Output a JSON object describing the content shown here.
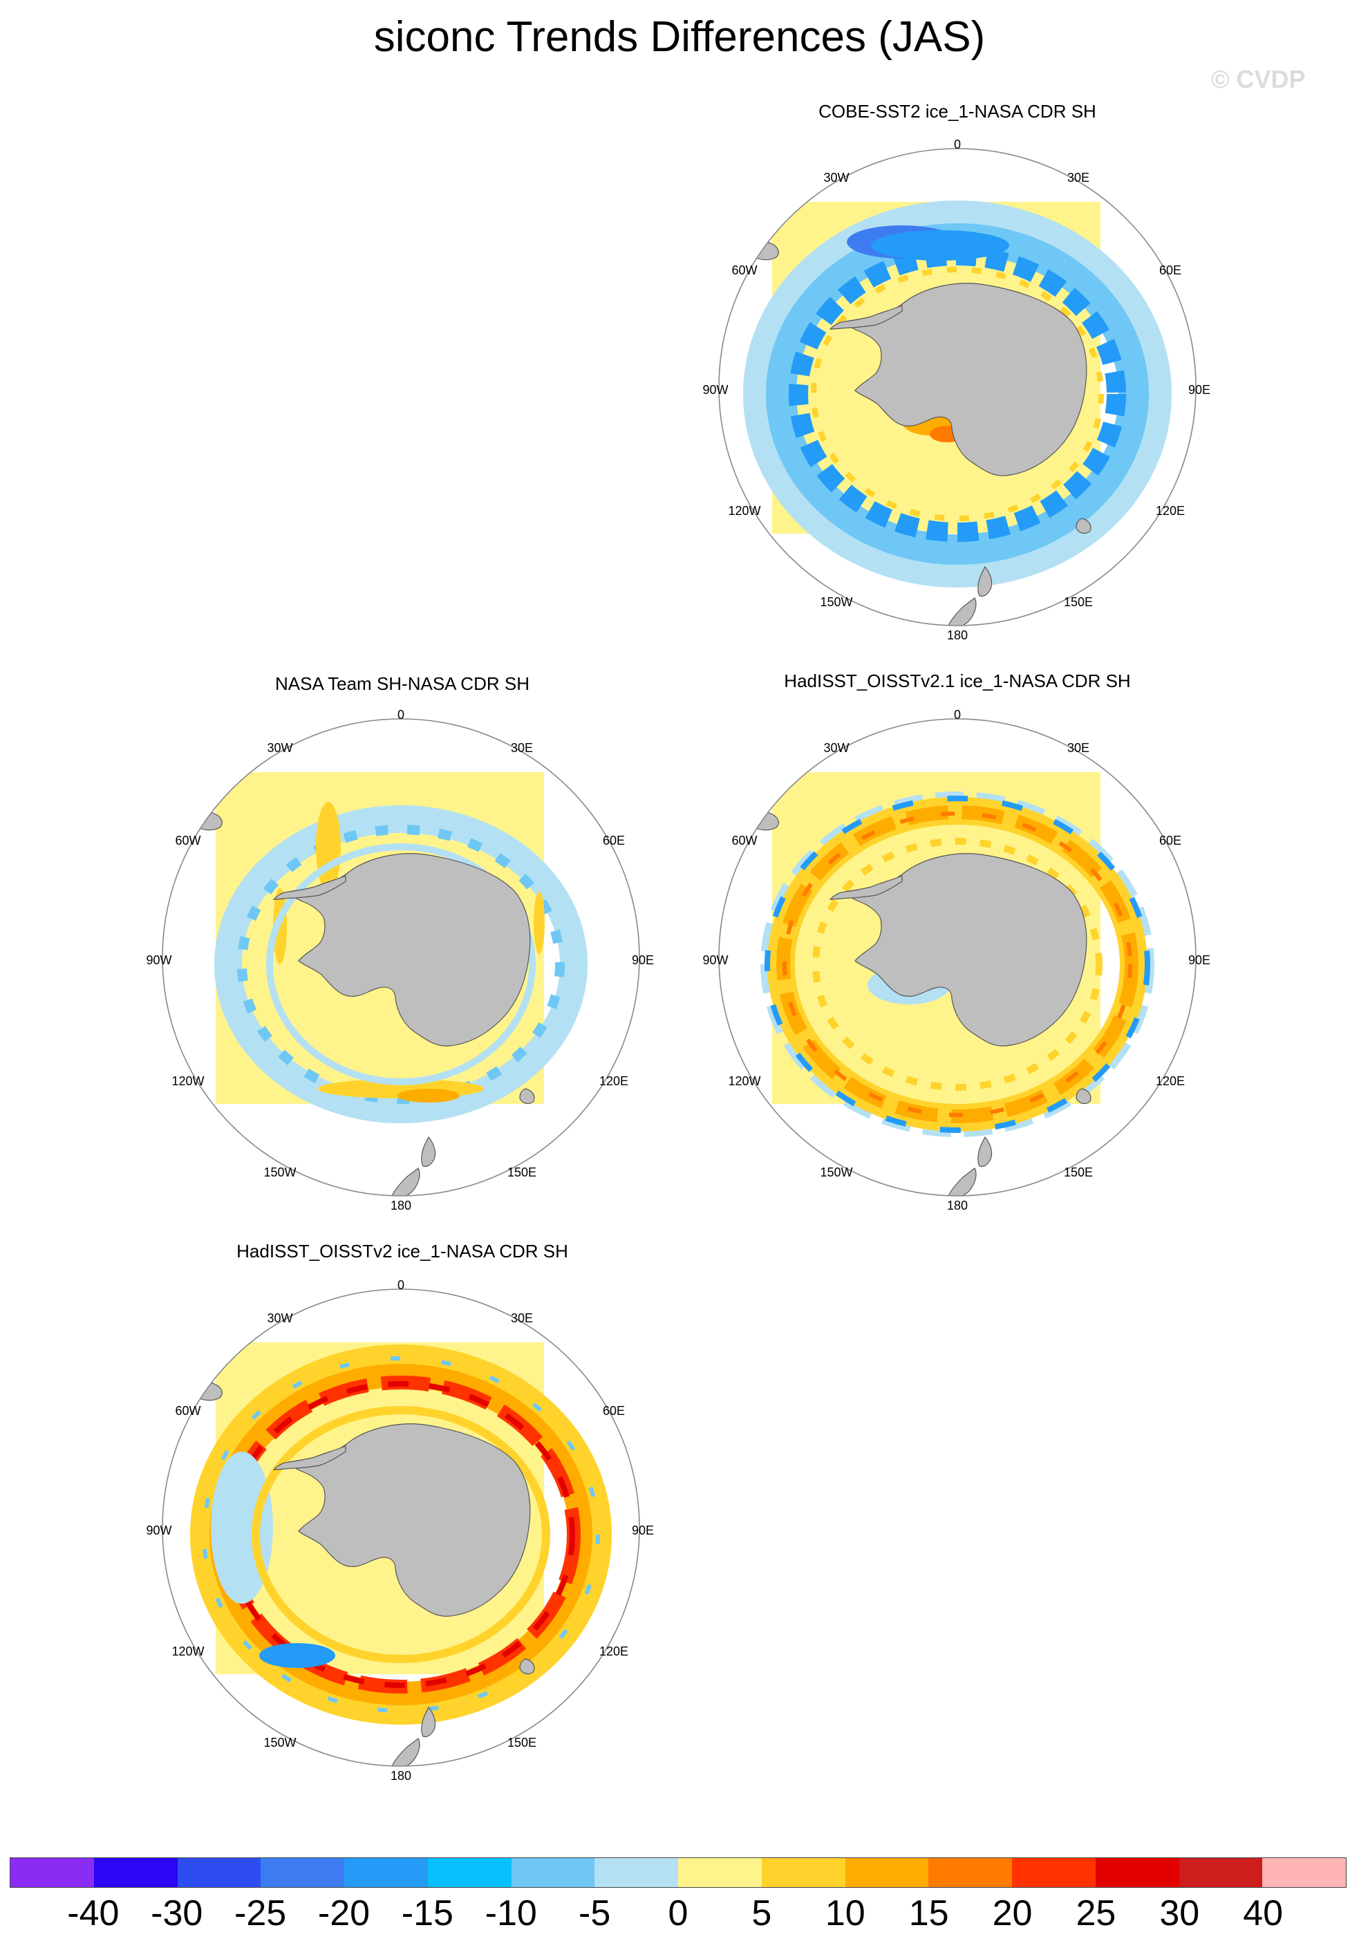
{
  "title": "siconc Trends Differences (JAS)",
  "watermark": "© CVDP",
  "panels": [
    {
      "id": "cobe",
      "title": "COBE-SST2 ice_1-NASA CDR SH",
      "pattern": "negative-ring"
    },
    {
      "id": "nasateam",
      "title": "NASA Team SH-NASA CDR SH",
      "pattern": "weak-mixed"
    },
    {
      "id": "oisst21",
      "title": "HadISST_OISSTv2.1 ice_1-NASA CDR SH",
      "pattern": "positive-ring"
    },
    {
      "id": "oisst2",
      "title": "HadISST_OISSTv2 ice_1-NASA CDR SH",
      "pattern": "strong-positive-ring"
    }
  ],
  "lon_labels": {
    "top": "0",
    "bottom": "180",
    "upper_left": "30W",
    "upper_right": "30E",
    "left_upper": "60W",
    "right_upper": "60E",
    "left": "90W",
    "right": "90E",
    "left_lower": "120W",
    "right_lower": "120E",
    "lower_left": "150W",
    "lower_right": "150E"
  },
  "colorbar": {
    "colors": [
      "#8b2cf5",
      "#2a06f5",
      "#2e4df1",
      "#3d7cf0",
      "#239bf7",
      "#07c0fb",
      "#6ec7f5",
      "#b4e0f3",
      "#fff48c",
      "#ffd32c",
      "#ffac00",
      "#ff7b00",
      "#ff3300",
      "#e30100",
      "#cd1d1d",
      "#ffb5b5"
    ],
    "labels": [
      "-40",
      "-30",
      "-25",
      "-20",
      "-15",
      "-10",
      "-5",
      "0",
      "5",
      "10",
      "15",
      "20",
      "25",
      "30",
      "40"
    ]
  },
  "colors": {
    "background": "#fff48c",
    "land": "#bebebe",
    "coast": "#555555",
    "circle": "#888888",
    "pale_blue": "#b4e0f3",
    "light_blue": "#6ec7f5",
    "blue": "#239bf7",
    "deep_blue": "#3d7cf0",
    "gold": "#ffd32c",
    "orange": "#ffac00",
    "dark_orange": "#ff7b00",
    "red": "#ff3300",
    "dark_red": "#e30100"
  }
}
